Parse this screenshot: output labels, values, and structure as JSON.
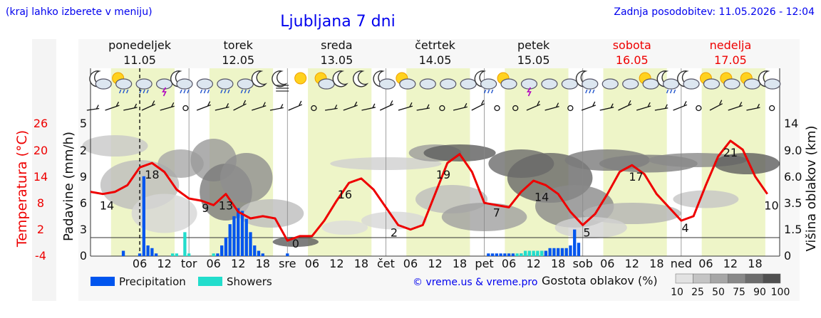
{
  "header": {
    "region_hint": "(kraj lahko izberete v meniju)",
    "title": "Ljubljana 7 dni",
    "updated": "Zadnja posodobitev: 11.05.2026 - 12:04"
  },
  "days": [
    {
      "name": "ponedeljek",
      "date": "11.05",
      "weekend": false
    },
    {
      "name": "torek",
      "date": "12.05",
      "weekend": false
    },
    {
      "name": "sreda",
      "date": "13.05",
      "weekend": false
    },
    {
      "name": "četrtek",
      "date": "14.05",
      "weekend": false
    },
    {
      "name": "petek",
      "date": "15.05",
      "weekend": false
    },
    {
      "name": "sobota",
      "date": "16.05",
      "weekend": true
    },
    {
      "name": "nedelja",
      "date": "17.05",
      "weekend": true
    }
  ],
  "icons": [
    "moon-cloud",
    "sun-cloud-rain",
    "cloud-rain",
    "cloud-lightning",
    "moon-cloud-rain",
    "cloud-rain",
    "cloud-rain",
    "cloud-rain",
    "moon",
    "fog-moon",
    "sun",
    "sun-cloud",
    "moon",
    "moon",
    "moon-cloud",
    "sun-cloud",
    "cloud",
    "cloud",
    "cloud",
    "moon-cloud-rain",
    "sun-cloud",
    "cloud-lightning",
    "cloud",
    "cloud",
    "moon-cloud-rain",
    "cloud",
    "cloud",
    "sun-cloud",
    "moon-cloud-rain",
    "moon-cloud",
    "sun-cloud",
    "sun-cloud",
    "sun-cloud",
    "moon-cloud"
  ],
  "left_axes": {
    "temperature_label": "Temperatura (°C)",
    "temperature_ticks": [
      "26",
      "20",
      "14",
      "8",
      "2",
      "-4"
    ],
    "precip_label": "Padavine (mm/h)",
    "precip_ticks": [
      "5",
      "2",
      "9",
      "6",
      "3",
      "0"
    ]
  },
  "right_axis": {
    "label": "Višina oblakov (km)",
    "ticks": [
      "14",
      "9.0",
      "6.0",
      "3.5",
      "1.5",
      "0"
    ]
  },
  "x_tick_labels": [
    "06",
    "12",
    "tor",
    "06",
    "12",
    "18",
    "sre",
    "06",
    "12",
    "18",
    "čet",
    "06",
    "12",
    "18",
    "pet",
    "06",
    "12",
    "18",
    "sob",
    "06",
    "12",
    "18",
    "ned",
    "06",
    "12",
    "18"
  ],
  "legend": {
    "precipitation": "Precipitation",
    "showers": "Showers",
    "credit": "© vreme.us & vreme.pro",
    "cloud_density_label": "Gostota oblakov (%)",
    "cloud_density_steps": [
      "10",
      "25",
      "50",
      "75",
      "90",
      "100"
    ]
  },
  "colors": {
    "title": "#0000ee",
    "weekend": "#ee0000",
    "temperature_line": "#ee0000",
    "precipitation": "#0055ee",
    "showers": "#22ddcc",
    "daylight": "#eef5c8"
  },
  "chart_data": {
    "type": "line",
    "title": "Ljubljana 7 dni",
    "x_unit": "hour since 11.05 00:00",
    "temperature": {
      "name": "Temperatura (°C)",
      "points": [
        [
          0,
          10.5
        ],
        [
          3,
          10
        ],
        [
          6,
          10.5
        ],
        [
          9,
          12
        ],
        [
          12,
          16
        ],
        [
          15,
          17
        ],
        [
          18,
          15
        ],
        [
          21,
          11
        ],
        [
          24,
          9
        ],
        [
          27,
          8.5
        ],
        [
          30,
          7.5
        ],
        [
          33,
          10
        ],
        [
          36,
          6
        ],
        [
          39,
          4.5
        ],
        [
          42,
          5
        ],
        [
          45,
          4.5
        ],
        [
          48,
          -0.5
        ],
        [
          51,
          0.5
        ],
        [
          54,
          0.5
        ],
        [
          57,
          4
        ],
        [
          60,
          8.5
        ],
        [
          63,
          12.5
        ],
        [
          66,
          13.5
        ],
        [
          69,
          11
        ],
        [
          72,
          7
        ],
        [
          75,
          3
        ],
        [
          78,
          2
        ],
        [
          81,
          3
        ],
        [
          84,
          10
        ],
        [
          87,
          17
        ],
        [
          90,
          19
        ],
        [
          93,
          15
        ],
        [
          96,
          8
        ],
        [
          99,
          7.5
        ],
        [
          102,
          7
        ],
        [
          105,
          10.5
        ],
        [
          108,
          13
        ],
        [
          111,
          12
        ],
        [
          114,
          10
        ],
        [
          117,
          6
        ],
        [
          120,
          3
        ],
        [
          123,
          5.5
        ],
        [
          126,
          10
        ],
        [
          129,
          15
        ],
        [
          132,
          16.5
        ],
        [
          135,
          14.5
        ],
        [
          138,
          10
        ],
        [
          141,
          7
        ],
        [
          144,
          4
        ],
        [
          147,
          5
        ],
        [
          150,
          12
        ],
        [
          153,
          18.5
        ],
        [
          156,
          22
        ],
        [
          159,
          20
        ],
        [
          162,
          14
        ],
        [
          165,
          10
        ]
      ]
    },
    "temperature_labels": [
      {
        "x": 4,
        "value": "14"
      },
      {
        "x": 15,
        "value": "18"
      },
      {
        "x": 28,
        "value": "9"
      },
      {
        "x": 33,
        "value": "13"
      },
      {
        "x": 50,
        "value": "0"
      },
      {
        "x": 62,
        "value": "16"
      },
      {
        "x": 74,
        "value": "2"
      },
      {
        "x": 86,
        "value": "19"
      },
      {
        "x": 99,
        "value": "7"
      },
      {
        "x": 110,
        "value": "14"
      },
      {
        "x": 121,
        "value": "5"
      },
      {
        "x": 133,
        "value": "17"
      },
      {
        "x": 145,
        "value": "4"
      },
      {
        "x": 156,
        "value": "21"
      },
      {
        "x": 166,
        "value": "10"
      }
    ],
    "precipitation": {
      "name": "Precipitation",
      "bars": [
        [
          8,
          0.2
        ],
        [
          12,
          0.1
        ],
        [
          13,
          3.0
        ],
        [
          14,
          0.4
        ],
        [
          15,
          0.3
        ],
        [
          16,
          0.1
        ],
        [
          31,
          0.1
        ],
        [
          32,
          0.4
        ],
        [
          33,
          0.7
        ],
        [
          34,
          1.2
        ],
        [
          35,
          1.5
        ],
        [
          36,
          1.8
        ],
        [
          37,
          1.7
        ],
        [
          38,
          1.4
        ],
        [
          39,
          0.9
        ],
        [
          40,
          0.4
        ],
        [
          41,
          0.2
        ],
        [
          42,
          0.1
        ],
        [
          48,
          0.1
        ],
        [
          97,
          0.1
        ],
        [
          98,
          0.1
        ],
        [
          99,
          0.1
        ],
        [
          100,
          0.1
        ],
        [
          101,
          0.1
        ],
        [
          102,
          0.1
        ],
        [
          103,
          0.1
        ],
        [
          105,
          0.1
        ],
        [
          106,
          0.1
        ],
        [
          107,
          0.1
        ],
        [
          108,
          0.1
        ],
        [
          109,
          0.1
        ],
        [
          110,
          0.2
        ],
        [
          111,
          0.2
        ],
        [
          112,
          0.3
        ],
        [
          113,
          0.3
        ],
        [
          114,
          0.3
        ],
        [
          115,
          0.3
        ],
        [
          116,
          0.3
        ],
        [
          117,
          0.4
        ],
        [
          118,
          1.0
        ],
        [
          119,
          0.5
        ]
      ]
    },
    "showers": {
      "name": "Showers",
      "bars": [
        [
          20,
          0.1
        ],
        [
          21,
          0.1
        ],
        [
          23,
          0.9
        ],
        [
          24,
          0.1
        ],
        [
          30,
          0.1
        ],
        [
          104,
          0.1
        ],
        [
          105,
          0.1
        ],
        [
          106,
          0.2
        ],
        [
          107,
          0.2
        ],
        [
          108,
          0.2
        ],
        [
          109,
          0.2
        ],
        [
          110,
          0.2
        ]
      ]
    },
    "y_temperature_range": [
      -4,
      26
    ],
    "y_precip_range": [
      0,
      5
    ],
    "cloud_height_range_km": [
      0,
      14
    ],
    "grid": true,
    "legend_position": "bottom"
  }
}
